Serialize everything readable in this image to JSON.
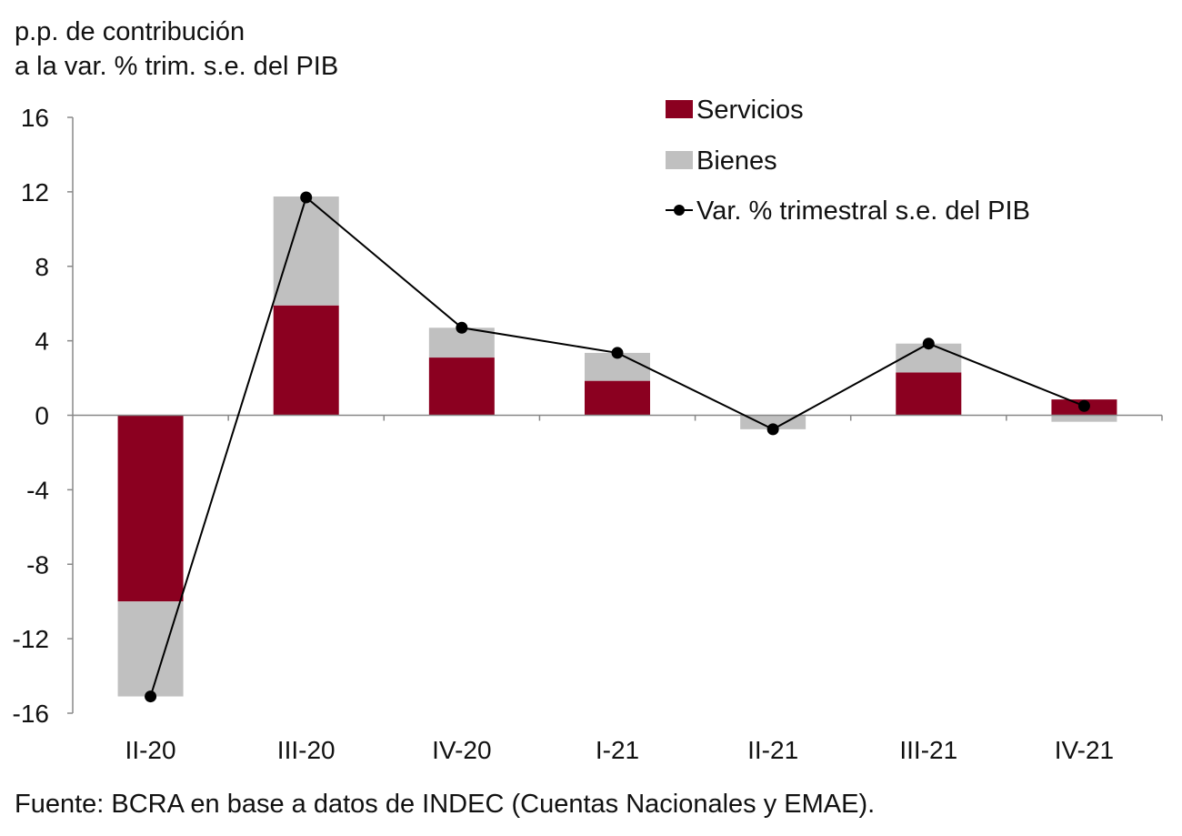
{
  "chart_data": {
    "type": "bar",
    "stacked": true,
    "ylabel": [
      "p.p. de contribución",
      "a la var. % trim. s.e. del PIB"
    ],
    "categories": [
      "II-20",
      "III-20",
      "IV-20",
      "I-21",
      "II-21",
      "III-21",
      "IV-21"
    ],
    "ylim": [
      -16,
      16
    ],
    "yticks": [
      16,
      12,
      8,
      4,
      0,
      -4,
      -8,
      -12,
      -16
    ],
    "grid": false,
    "legend_position": "top-right",
    "series": [
      {
        "name": "Servicios",
        "kind": "bar",
        "color": "#8b0020",
        "values": [
          -10.0,
          5.9,
          3.1,
          1.85,
          0.0,
          2.3,
          0.85
        ]
      },
      {
        "name": "Bienes",
        "kind": "bar",
        "color": "#c0c0c0",
        "values": [
          -5.1,
          5.85,
          1.6,
          1.5,
          -0.75,
          1.55,
          -0.35
        ]
      },
      {
        "name": "Var. % trimestral s.e. del PIB",
        "kind": "line",
        "color": "#000000",
        "values": [
          -15.1,
          11.7,
          4.7,
          3.35,
          -0.75,
          3.85,
          0.5
        ]
      }
    ]
  },
  "source": "Fuente: BCRA en base a datos de INDEC (Cuentas Nacionales y EMAE)."
}
